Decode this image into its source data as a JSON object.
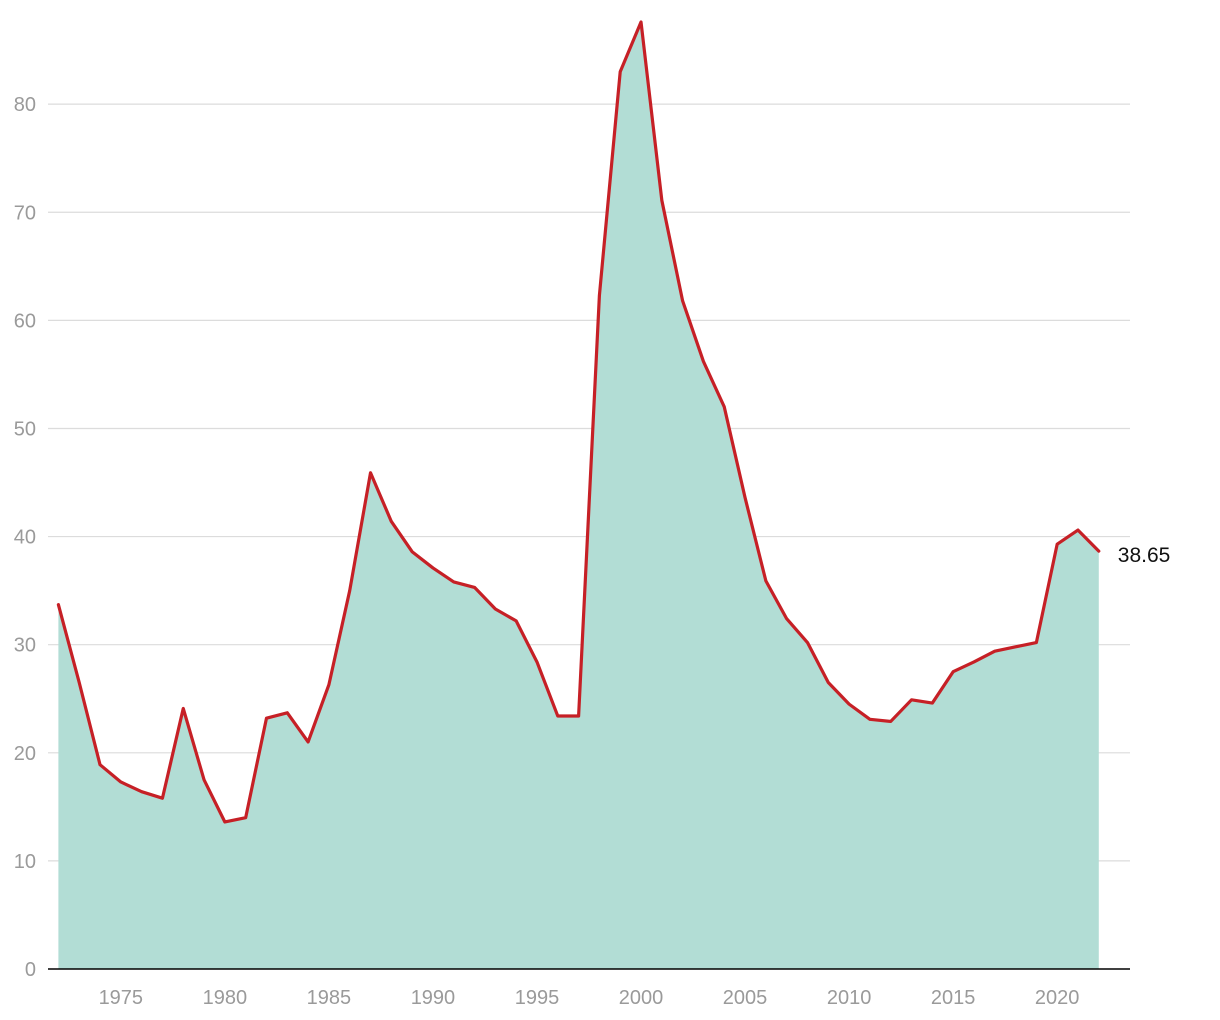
{
  "chart_data": {
    "type": "area",
    "title": "",
    "xlabel": "",
    "ylabel": "",
    "xlim": [
      1971.5,
      2023.5
    ],
    "ylim": [
      0,
      87.6
    ],
    "x_ticks": [
      1975,
      1980,
      1985,
      1990,
      1995,
      2000,
      2005,
      2010,
      2015,
      2020
    ],
    "y_ticks": [
      0,
      10,
      20,
      30,
      40,
      50,
      60,
      70,
      80
    ],
    "grid": true,
    "legend": "none",
    "colors": {
      "area": "#b2ddd5",
      "line": "#c62026"
    },
    "end_label": "38.65",
    "series": [
      {
        "x": [
          1972,
          1973,
          1974,
          1975,
          1976,
          1977,
          1978,
          1979,
          1980,
          1981,
          1982,
          1983,
          1984,
          1985,
          1986,
          1987,
          1988,
          1989,
          1990,
          1991,
          1992,
          1993,
          1994,
          1995,
          1996,
          1997,
          1998,
          1999,
          2000,
          2001,
          2002,
          2003,
          2004,
          2005,
          2006,
          2007,
          2008,
          2009,
          2010,
          2011,
          2012,
          2013,
          2014,
          2015,
          2016,
          2017,
          2018,
          2019,
          2020,
          2021,
          2022
        ],
        "values": [
          33.7,
          26.5,
          18.9,
          17.3,
          16.4,
          15.8,
          24.1,
          17.5,
          13.6,
          14.0,
          23.2,
          23.7,
          21.0,
          26.3,
          35.0,
          45.9,
          41.4,
          38.6,
          37.1,
          35.8,
          35.3,
          33.3,
          32.2,
          28.4,
          23.4,
          23.4,
          62.3,
          83.0,
          87.6,
          71.1,
          61.8,
          56.2,
          52.0,
          43.6,
          35.9,
          32.4,
          30.2,
          26.5,
          24.5,
          23.1,
          22.9,
          24.9,
          24.6,
          27.5,
          28.4,
          29.4,
          29.8,
          30.2,
          39.3,
          40.6,
          38.65
        ]
      }
    ]
  }
}
